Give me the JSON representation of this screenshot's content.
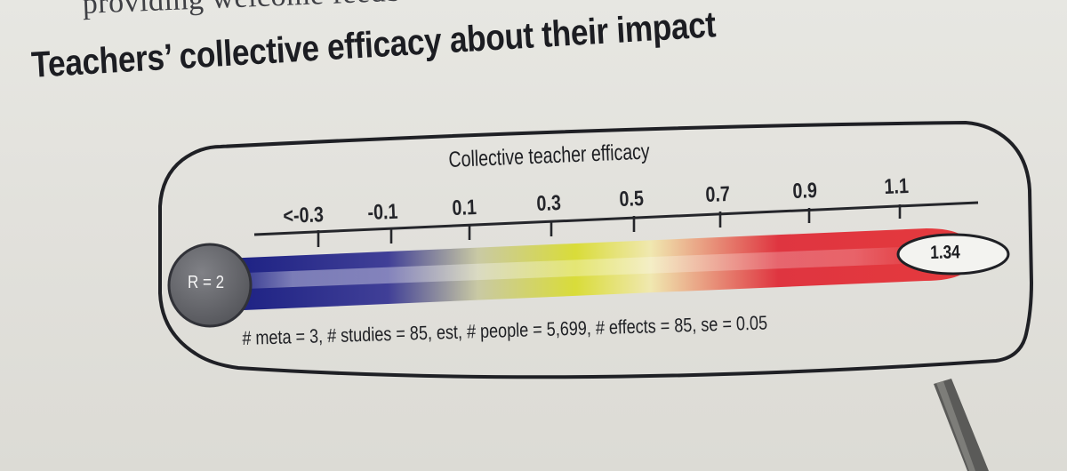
{
  "top_text": "providing welcome feedb",
  "heading": "Teachers’ collective efficacy about their impact",
  "figure": {
    "axis_title": "Collective teacher efficacy",
    "ticks": [
      "<-0.3",
      "-0.1",
      "0.1",
      "0.3",
      "0.5",
      "0.7",
      "0.9",
      "1.1"
    ],
    "rank_label": "R = 2",
    "value_label": "1.34",
    "stats_line": "# meta = 3, # studies = 85, est, # people = 5,699, # effects = 85, se = 0.05",
    "gradient_stops": [
      {
        "offset": 0,
        "color": "#1a1f82"
      },
      {
        "offset": 0.22,
        "color": "#403f97"
      },
      {
        "offset": 0.34,
        "color": "#c9c9a4"
      },
      {
        "offset": 0.47,
        "color": "#d9dc39"
      },
      {
        "offset": 0.57,
        "color": "#f0e8b0"
      },
      {
        "offset": 0.74,
        "color": "#df3540"
      },
      {
        "offset": 1,
        "color": "#e53a3d"
      }
    ]
  },
  "colors": {
    "paper": "#e5e4df",
    "ink": "#1c1d22",
    "badge_gray": "#67686d",
    "pen_gray": "#585857"
  }
}
